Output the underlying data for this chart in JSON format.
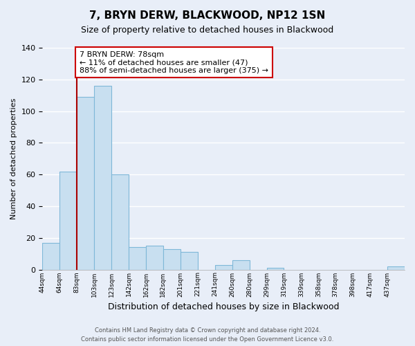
{
  "title": "7, BRYN DERW, BLACKWOOD, NP12 1SN",
  "subtitle": "Size of property relative to detached houses in Blackwood",
  "xlabel": "Distribution of detached houses by size in Blackwood",
  "ylabel": "Number of detached properties",
  "bin_labels": [
    "44sqm",
    "64sqm",
    "83sqm",
    "103sqm",
    "123sqm",
    "142sqm",
    "162sqm",
    "182sqm",
    "201sqm",
    "221sqm",
    "241sqm",
    "260sqm",
    "280sqm",
    "299sqm",
    "319sqm",
    "339sqm",
    "358sqm",
    "378sqm",
    "398sqm",
    "417sqm",
    "437sqm"
  ],
  "bar_heights": [
    17,
    62,
    109,
    116,
    60,
    14,
    15,
    13,
    11,
    0,
    3,
    6,
    0,
    1,
    0,
    0,
    0,
    0,
    0,
    0,
    2
  ],
  "bar_color": "#c8dff0",
  "bar_edge_color": "#7fb8d8",
  "highlight_line_color": "#aa0000",
  "annotation_line1": "7 BRYN DERW: 78sqm",
  "annotation_line2": "← 11% of detached houses are smaller (47)",
  "annotation_line3": "88% of semi-detached houses are larger (375) →",
  "annotation_box_color": "#ffffff",
  "annotation_box_edge": "#cc0000",
  "ylim": [
    0,
    140
  ],
  "yticks": [
    0,
    20,
    40,
    60,
    80,
    100,
    120,
    140
  ],
  "footer_text": "Contains HM Land Registry data © Crown copyright and database right 2024.\nContains public sector information licensed under the Open Government Licence v3.0.",
  "background_color": "#e8eef8",
  "grid_color": "#ffffff"
}
